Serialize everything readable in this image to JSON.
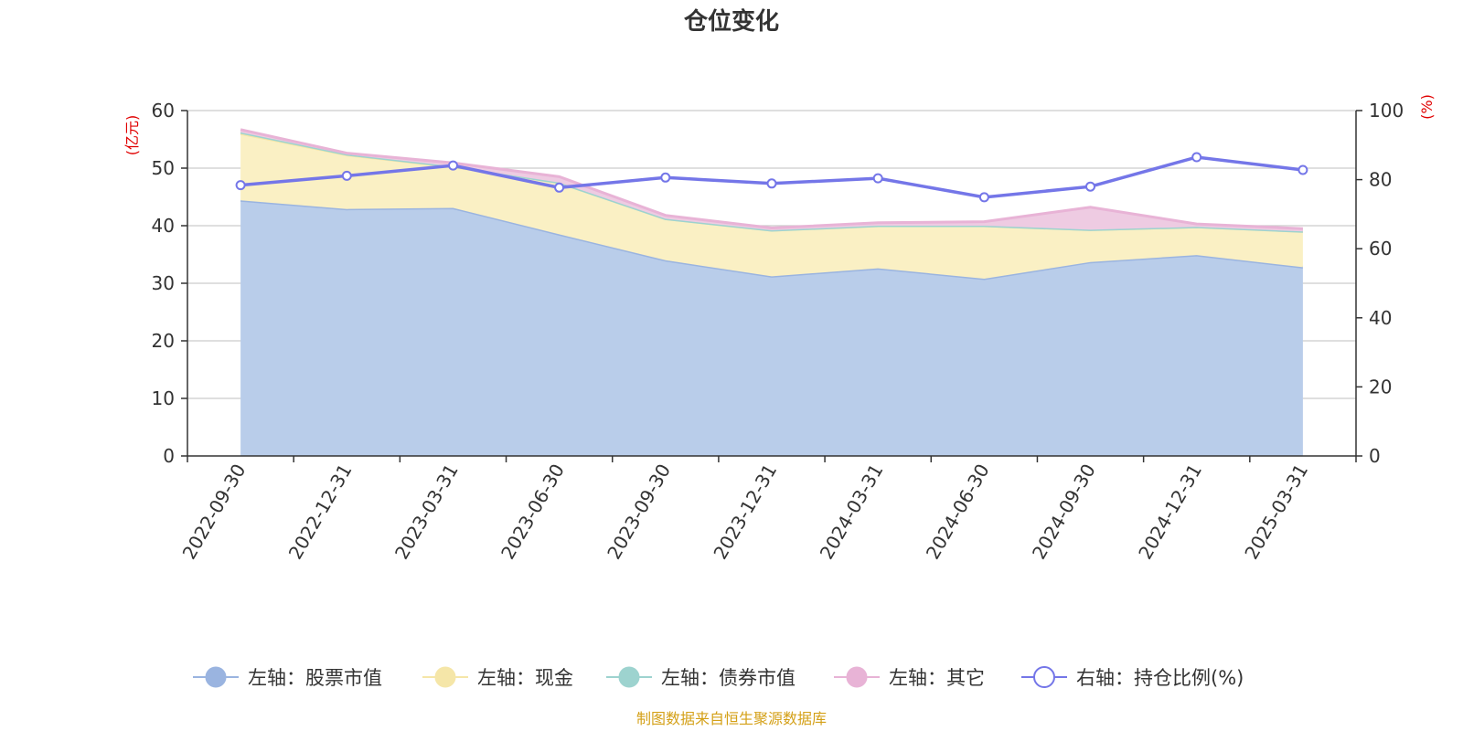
{
  "chart_data": {
    "type": "area",
    "title": "仓位变化",
    "categories": [
      "2022-09-30",
      "2022-12-31",
      "2023-03-31",
      "2023-06-30",
      "2023-09-30",
      "2023-12-31",
      "2024-03-31",
      "2024-06-30",
      "2024-09-30",
      "2024-12-31",
      "2025-03-31"
    ],
    "left_axis": {
      "unit_label": "(亿元)",
      "ylim": [
        0,
        60
      ],
      "ticks": [
        "0",
        "10",
        "20",
        "30",
        "40",
        "50",
        "60"
      ]
    },
    "right_axis": {
      "unit_label": "(%)",
      "ylim": [
        0,
        100
      ],
      "ticks": [
        "0",
        "20",
        "40",
        "60",
        "80",
        "100"
      ]
    },
    "series": [
      {
        "name": "左轴：股票市值",
        "axis": "left",
        "kind": "stacked-area",
        "color": "#9ab4e0",
        "fill": "#b9cdea",
        "values": [
          44.4,
          42.9,
          43.1,
          38.5,
          34.0,
          31.2,
          32.6,
          30.8,
          33.7,
          34.9,
          32.8
        ]
      },
      {
        "name": "左轴：现金",
        "axis": "left",
        "kind": "stacked-area",
        "color": "#f5e6a8",
        "fill": "#faf0c4",
        "values": [
          11.6,
          9.4,
          7.1,
          9.0,
          7.2,
          8.0,
          7.4,
          9.2,
          5.6,
          4.9,
          6.2
        ]
      },
      {
        "name": "左轴：债券市值",
        "axis": "left",
        "kind": "stacked-area",
        "color": "#9dd3cf",
        "fill": "#c6e6e3",
        "values": [
          0.2,
          0.1,
          0.1,
          0.0,
          0.0,
          0.0,
          0.0,
          0.0,
          0.0,
          0.0,
          0.0
        ]
      },
      {
        "name": "左轴：其它",
        "axis": "left",
        "kind": "stacked-area",
        "color": "#e8b3d6",
        "fill": "#eecbe2",
        "values": [
          0.5,
          0.2,
          0.6,
          1.0,
          0.6,
          0.4,
          0.5,
          0.7,
          3.9,
          0.5,
          0.5
        ]
      },
      {
        "name": "右轴：持仓比例(%)",
        "axis": "right",
        "kind": "line",
        "color": "#7476e8",
        "values": [
          78.4,
          81.1,
          84.1,
          77.7,
          80.6,
          78.9,
          80.4,
          74.9,
          78.0,
          86.5,
          82.8
        ]
      }
    ],
    "grid": true,
    "legend_position": "bottom"
  },
  "footer": {
    "source": "制图数据来自恒生聚源数据库"
  }
}
